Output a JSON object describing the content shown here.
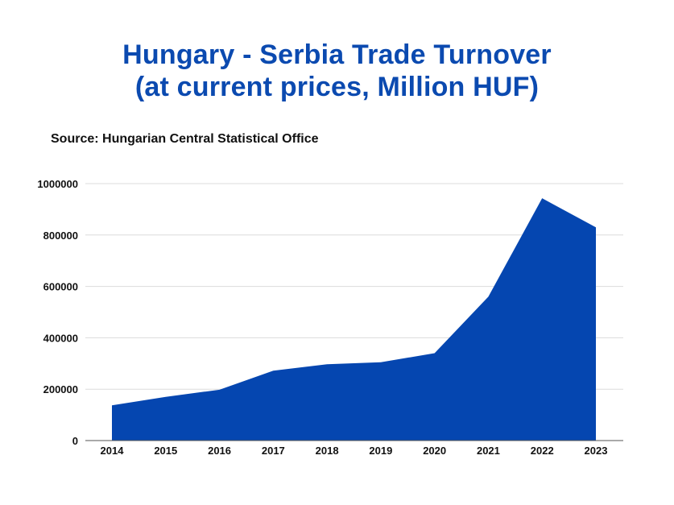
{
  "chart_data": {
    "type": "area",
    "title_lines": [
      "Hungary - Serbia Trade Turnover",
      "(at current prices, Million HUF)"
    ],
    "subtitle": "Source: Hungarian Central Statistical Office",
    "xlabel": "",
    "ylabel": "",
    "categories": [
      "2014",
      "2015",
      "2016",
      "2017",
      "2018",
      "2019",
      "2020",
      "2021",
      "2022",
      "2023"
    ],
    "values": [
      137000,
      170000,
      198000,
      272000,
      297000,
      305000,
      340000,
      560000,
      943000,
      830000
    ],
    "ylim": [
      0,
      1000000
    ],
    "yticks": [
      "0",
      "200000",
      "400000",
      "600000",
      "800000",
      "1000000"
    ],
    "ytick_values": [
      0,
      200000,
      400000,
      600000,
      800000,
      1000000
    ],
    "grid": true,
    "legend": "none",
    "colors": {
      "title": "#0b4ab0",
      "area": "#0546b0",
      "grid": "#dcdcdc",
      "axis": "#555555",
      "text": "#111111"
    }
  }
}
